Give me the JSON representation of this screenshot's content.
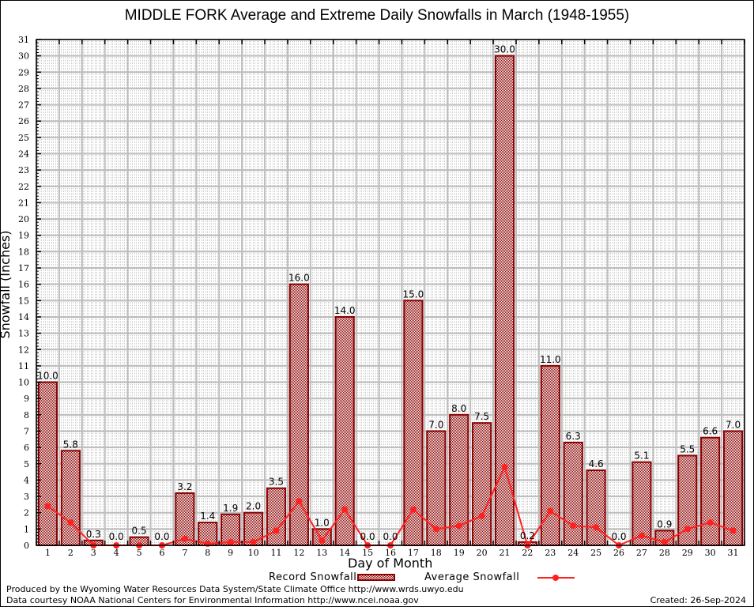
{
  "chart_data": {
    "type": "bar",
    "title": "MIDDLE FORK Average and Extreme Daily Snowfalls in March (1948-1955)",
    "xlabel": "Day of Month",
    "ylabel": "Snowfall (Inches)",
    "ylim": [
      0,
      31
    ],
    "yticks": [
      0,
      1,
      2,
      3,
      4,
      5,
      6,
      7,
      8,
      9,
      10,
      11,
      12,
      13,
      14,
      15,
      16,
      17,
      18,
      19,
      20,
      21,
      22,
      23,
      24,
      25,
      26,
      27,
      28,
      29,
      30,
      31
    ],
    "grid": true,
    "legend_position": "bottom",
    "categories": [
      "1",
      "2",
      "3",
      "4",
      "5",
      "6",
      "7",
      "8",
      "9",
      "10",
      "11",
      "12",
      "13",
      "14",
      "15",
      "16",
      "17",
      "18",
      "19",
      "20",
      "21",
      "22",
      "23",
      "24",
      "25",
      "26",
      "27",
      "28",
      "29",
      "30",
      "31"
    ],
    "series": [
      {
        "name": "Record Snowfall",
        "kind": "bar",
        "color": "#8b0000",
        "values": [
          10.0,
          5.8,
          0.3,
          0.0,
          0.5,
          0.0,
          3.2,
          1.4,
          1.9,
          2.0,
          3.5,
          16.0,
          1.0,
          14.0,
          0.0,
          0.0,
          15.0,
          7.0,
          8.0,
          7.5,
          30.0,
          0.2,
          11.0,
          6.3,
          4.6,
          0.0,
          5.1,
          0.9,
          5.5,
          6.6,
          7.0
        ],
        "labels": [
          "10.0",
          "5.8",
          "0.3",
          "0.0",
          "0.5",
          "0.0",
          "3.2",
          "1.4",
          "1.9",
          "2.0",
          "3.5",
          "16.0",
          "1.0",
          "14.0",
          "0.0",
          "0.0",
          "15.0",
          "7.0",
          "8.0",
          "7.5",
          "30.0",
          "0.2",
          "11.0",
          "6.3",
          "4.6",
          "0.0",
          "5.1",
          "0.9",
          "5.5",
          "6.6",
          "7.0"
        ]
      },
      {
        "name": "Average Snowfall",
        "kind": "line",
        "color": "#ff2020",
        "values": [
          2.4,
          1.4,
          0.0,
          0.0,
          0.0,
          0.0,
          0.4,
          0.1,
          0.2,
          0.2,
          0.9,
          2.7,
          0.3,
          2.2,
          0.0,
          0.0,
          2.2,
          1.0,
          1.2,
          1.8,
          4.8,
          0.0,
          2.1,
          1.2,
          1.1,
          0.0,
          0.6,
          0.2,
          1.0,
          1.4,
          0.9
        ]
      }
    ]
  },
  "legend": {
    "record_label": "Record Snowfall",
    "average_label": "Average Snowfall"
  },
  "footer": {
    "produced_by": "Produced by the Wyoming Water Resources Data System/State Climate Office http://www.wrds.uwyo.edu",
    "data_courtesy": "Data courtesy NOAA National Centers for Environmental Information http://www.ncei.noaa.gov",
    "created": "Created: 26-Sep-2024"
  }
}
